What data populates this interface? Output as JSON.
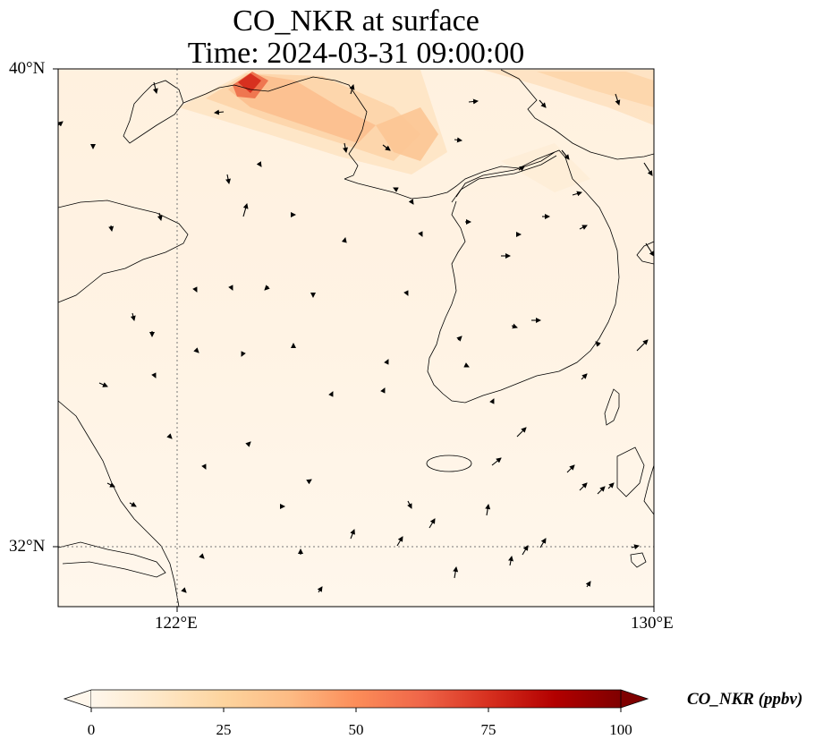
{
  "title": {
    "line1": "CO_NKR at surface",
    "line2": "Time: 2024-03-31 09:00:00"
  },
  "map": {
    "lat_ticks": [
      "40°N",
      "32°N"
    ],
    "lon_ticks": [
      "122°E",
      "130°E"
    ],
    "lat_range": [
      31,
      40
    ],
    "lon_range": [
      120,
      130
    ],
    "gridlines": "dotted at 122°E and 32°N",
    "variable": "CO_NKR",
    "level": "surface",
    "vectors": "wind arrows (black)",
    "plume_region": "Bohai Sea / Liaodong area, peak near 123°E 39.8°N"
  },
  "colorbar": {
    "label": "CO_NKR (ppbv)",
    "ticks": [
      "0",
      "25",
      "50",
      "75",
      "100"
    ],
    "range": [
      0,
      100
    ],
    "extend": "both",
    "colormap": "OrRd",
    "colors": [
      "#fff7ec",
      "#fee8c8",
      "#fdd49e",
      "#fdbb84",
      "#fc8d59",
      "#ef6548",
      "#d7301f",
      "#b30000",
      "#7f0000"
    ]
  }
}
